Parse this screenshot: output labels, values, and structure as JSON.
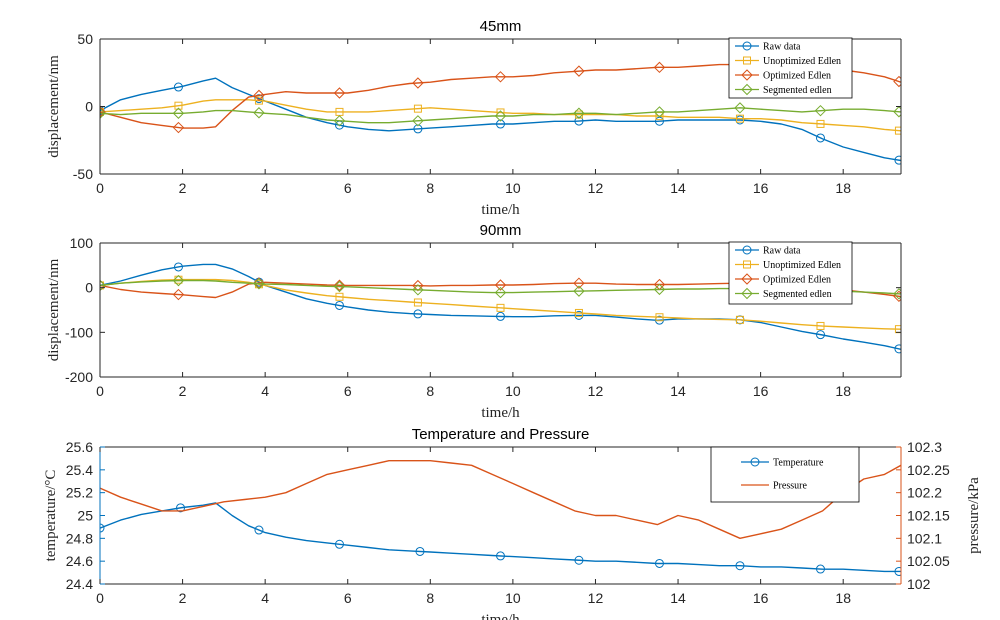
{
  "colors": {
    "blue": "#0072BD",
    "yellow": "#EDB120",
    "orange": "#D95319",
    "green": "#77AC30",
    "axis": "#262626"
  },
  "chart_data": [
    {
      "type": "line",
      "title": "45mm",
      "xlabel": "time/h",
      "ylabel": "displacement/nm",
      "xlim": [
        0,
        19.4
      ],
      "ylim": [
        -50,
        50
      ],
      "xticks": [
        0,
        2,
        4,
        6,
        8,
        10,
        12,
        14,
        16,
        18
      ],
      "yticks": [
        -50,
        0,
        50
      ],
      "legend_position": "top-right",
      "series": [
        {
          "name": "Raw data",
          "marker": "circle",
          "color": "#0072BD",
          "x": [
            0,
            0.5,
            1,
            1.5,
            2,
            2.5,
            2.8,
            3.2,
            3.6,
            4,
            4.5,
            5,
            5.5,
            6,
            6.5,
            7,
            7.5,
            8,
            8.5,
            9,
            9.5,
            10,
            10.5,
            11,
            11.5,
            12,
            12.5,
            13,
            13.5,
            14,
            14.5,
            15,
            15.5,
            16,
            16.5,
            17,
            17.5,
            18,
            18.5,
            19,
            19.4
          ],
          "y": [
            -3,
            5,
            9,
            12,
            15,
            19,
            21,
            14,
            9,
            4,
            -2,
            -8,
            -12,
            -15,
            -17,
            -18,
            -17,
            -16,
            -15,
            -14,
            -13,
            -13,
            -12,
            -11,
            -11,
            -10,
            -11,
            -11,
            -11,
            -10,
            -10,
            -10,
            -10,
            -11,
            -13,
            -17,
            -24,
            -30,
            -34,
            -38,
            -40
          ]
        },
        {
          "name": "Unoptimized Edlen",
          "marker": "square",
          "color": "#EDB120",
          "x": [
            0,
            0.5,
            1,
            1.5,
            2,
            2.5,
            2.8,
            3.2,
            3.6,
            4,
            4.5,
            5,
            5.5,
            6,
            6.5,
            7,
            7.5,
            8,
            8.5,
            9,
            9.5,
            10,
            10.5,
            11,
            11.5,
            12,
            12.5,
            13,
            13.5,
            14,
            14.5,
            15,
            15.5,
            16,
            16.5,
            17,
            17.5,
            18,
            18.5,
            19,
            19.4
          ],
          "y": [
            -4,
            -3,
            -2,
            -1,
            1,
            4,
            5,
            5,
            5,
            4,
            1,
            -2,
            -4,
            -4,
            -4,
            -3,
            -2,
            -1,
            -2,
            -3,
            -4,
            -5,
            -5,
            -6,
            -6,
            -6,
            -6,
            -7,
            -7,
            -8,
            -8,
            -8,
            -9,
            -9,
            -10,
            -12,
            -13,
            -14,
            -15,
            -17,
            -18
          ]
        },
        {
          "name": "Optimized Edlen",
          "marker": "diamond",
          "color": "#D95319",
          "x": [
            0,
            0.5,
            1,
            1.5,
            2,
            2.5,
            2.8,
            3.2,
            3.6,
            4,
            4.5,
            5,
            5.5,
            6,
            6.5,
            7,
            7.5,
            8,
            8.5,
            9,
            9.5,
            10,
            10.5,
            11,
            11.5,
            12,
            12.5,
            13,
            13.5,
            14,
            14.5,
            15,
            15.5,
            16,
            16.5,
            17,
            17.5,
            18,
            18.5,
            19,
            19.4
          ],
          "y": [
            -4,
            -8,
            -12,
            -14,
            -16,
            -16,
            -15,
            -3,
            7,
            9,
            11,
            10,
            10,
            10,
            12,
            15,
            17,
            18,
            20,
            21,
            22,
            22,
            23,
            25,
            26,
            27,
            27,
            28,
            29,
            29,
            30,
            31,
            31,
            31,
            30,
            29,
            28,
            27,
            25,
            22,
            18
          ]
        },
        {
          "name": "Segmented edlen",
          "marker": "diamond",
          "color": "#77AC30",
          "x": [
            0,
            0.5,
            1,
            1.5,
            2,
            2.5,
            2.8,
            3.2,
            3.6,
            4,
            4.5,
            5,
            5.5,
            6,
            6.5,
            7,
            7.5,
            8,
            8.5,
            9,
            9.5,
            10,
            10.5,
            11,
            11.5,
            12,
            12.5,
            13,
            13.5,
            14,
            14.5,
            15,
            15.5,
            16,
            16.5,
            17,
            17.5,
            18,
            18.5,
            19,
            19.4
          ],
          "y": [
            -5,
            -6,
            -5,
            -5,
            -5,
            -4,
            -3,
            -3,
            -4,
            -5,
            -6,
            -8,
            -10,
            -11,
            -12,
            -12,
            -11,
            -10,
            -9,
            -8,
            -7,
            -7,
            -6,
            -6,
            -5,
            -5,
            -6,
            -5,
            -4,
            -4,
            -3,
            -2,
            -1,
            -2,
            -3,
            -4,
            -3,
            -2,
            -2,
            -3,
            -4
          ]
        }
      ]
    },
    {
      "type": "line",
      "title": "90mm",
      "xlabel": "time/h",
      "ylabel": "displacement/nm",
      "xlim": [
        0,
        19.4
      ],
      "ylim": [
        -200,
        100
      ],
      "xticks": [
        0,
        2,
        4,
        6,
        8,
        10,
        12,
        14,
        16,
        18
      ],
      "yticks": [
        -200,
        -100,
        0,
        100
      ],
      "legend_position": "top-right",
      "series": [
        {
          "name": "Raw data",
          "marker": "circle",
          "color": "#0072BD",
          "x": [
            0,
            0.5,
            1,
            1.5,
            2,
            2.5,
            2.8,
            3.2,
            3.6,
            4,
            4.5,
            5,
            5.5,
            6,
            6.5,
            7,
            7.5,
            8,
            8.5,
            9,
            9.5,
            10,
            10.5,
            11,
            11.5,
            12,
            12.5,
            13,
            13.5,
            14,
            14.5,
            15,
            15.5,
            16,
            16.5,
            17,
            17.5,
            18,
            18.5,
            19,
            19.4
          ],
          "y": [
            5,
            15,
            28,
            40,
            48,
            52,
            52,
            42,
            25,
            5,
            -10,
            -25,
            -35,
            -43,
            -50,
            -55,
            -58,
            -60,
            -62,
            -63,
            -64,
            -65,
            -65,
            -63,
            -62,
            -62,
            -66,
            -70,
            -73,
            -70,
            -70,
            -70,
            -72,
            -78,
            -88,
            -98,
            -106,
            -115,
            -122,
            -130,
            -138
          ]
        },
        {
          "name": "Unoptimized Edlen",
          "marker": "square",
          "color": "#EDB120",
          "x": [
            0,
            0.5,
            1,
            1.5,
            2,
            2.5,
            2.8,
            3.2,
            3.6,
            4,
            4.5,
            5,
            5.5,
            6,
            6.5,
            7,
            7.5,
            8,
            8.5,
            9,
            9.5,
            10,
            10.5,
            11,
            11.5,
            12,
            12.5,
            13,
            13.5,
            14,
            14.5,
            15,
            15.5,
            16,
            16.5,
            17,
            17.5,
            18,
            18.5,
            19,
            19.4
          ],
          "y": [
            5,
            10,
            14,
            17,
            18,
            18,
            18,
            16,
            12,
            5,
            -5,
            -12,
            -18,
            -22,
            -26,
            -29,
            -32,
            -35,
            -38,
            -41,
            -44,
            -47,
            -50,
            -53,
            -56,
            -59,
            -62,
            -64,
            -66,
            -68,
            -70,
            -71,
            -72,
            -75,
            -79,
            -83,
            -86,
            -88,
            -90,
            -92,
            -93
          ]
        },
        {
          "name": "Optimized Edlen",
          "marker": "diamond",
          "color": "#D95319",
          "x": [
            0,
            0.5,
            1,
            1.5,
            2,
            2.5,
            2.8,
            3.2,
            3.6,
            4,
            4.5,
            5,
            5.5,
            6,
            6.5,
            7,
            7.5,
            8,
            8.5,
            9,
            9.5,
            10,
            10.5,
            11,
            11.5,
            12,
            12.5,
            13,
            13.5,
            14,
            14.5,
            15,
            15.5,
            16,
            16.5,
            17,
            17.5,
            18,
            18.5,
            19,
            19.4
          ],
          "y": [
            5,
            -4,
            -10,
            -13,
            -16,
            -20,
            -22,
            -10,
            8,
            12,
            10,
            8,
            6,
            5,
            5,
            5,
            5,
            4,
            5,
            5,
            6,
            6,
            7,
            9,
            10,
            10,
            8,
            7,
            7,
            7,
            8,
            9,
            10,
            9,
            8,
            5,
            0,
            -5,
            -10,
            -15,
            -20
          ]
        },
        {
          "name": "Segmented edlen",
          "marker": "diamond",
          "color": "#77AC30",
          "x": [
            0,
            0.5,
            1,
            1.5,
            2,
            2.5,
            2.8,
            3.2,
            3.6,
            4,
            4.5,
            5,
            5.5,
            6,
            6.5,
            7,
            7.5,
            8,
            8.5,
            9,
            9.5,
            10,
            10.5,
            11,
            11.5,
            12,
            12.5,
            13,
            13.5,
            14,
            14.5,
            15,
            15.5,
            16,
            16.5,
            17,
            17.5,
            18,
            18.5,
            19,
            19.4
          ],
          "y": [
            5,
            10,
            13,
            15,
            16,
            16,
            15,
            12,
            10,
            8,
            7,
            5,
            3,
            2,
            0,
            -2,
            -4,
            -6,
            -8,
            -10,
            -11,
            -11,
            -10,
            -9,
            -8,
            -7,
            -6,
            -5,
            -4,
            -3,
            -3,
            -2,
            -2,
            -3,
            -4,
            -5,
            -6,
            -8,
            -10,
            -12,
            -14
          ]
        }
      ]
    },
    {
      "type": "line",
      "title": "Temperature and Pressure",
      "xlabel": "time/h",
      "ylabel_left": "temperature/°C",
      "ylabel_right": "pressure/kPa",
      "xlim": [
        0,
        19.4
      ],
      "ylim_left": [
        24.4,
        25.6
      ],
      "ylim_right": [
        102,
        102.3
      ],
      "xticks": [
        0,
        2,
        4,
        6,
        8,
        10,
        12,
        14,
        16,
        18
      ],
      "yticks_left": [
        24.4,
        24.6,
        24.8,
        25,
        25.2,
        25.4,
        25.6
      ],
      "ytick_labels_left": [
        "24.4",
        "24.6",
        "24.8",
        "25",
        "25.2",
        "25.4",
        "25.6"
      ],
      "yticks_right": [
        102,
        102.05,
        102.1,
        102.15,
        102.2,
        102.25,
        102.3
      ],
      "ytick_labels_right": [
        "102",
        "102.05",
        "102.1",
        "102.15",
        "102.2",
        "102.25",
        "102.3"
      ],
      "legend_position": "top-right",
      "series": [
        {
          "name": "Temperature",
          "axis": "left",
          "marker": "circle",
          "color": "#0072BD",
          "x": [
            0,
            0.5,
            1,
            1.5,
            2,
            2.5,
            2.8,
            3.2,
            3.6,
            4,
            4.5,
            5,
            5.5,
            6,
            6.5,
            7,
            7.5,
            8,
            8.5,
            9,
            9.5,
            10,
            10.5,
            11,
            11.5,
            12,
            12.5,
            13,
            13.5,
            14,
            14.5,
            15,
            15.5,
            16,
            16.5,
            17,
            17.5,
            18,
            18.5,
            19,
            19.4
          ],
          "y": [
            24.89,
            24.96,
            25.01,
            25.04,
            25.07,
            25.09,
            25.11,
            25.0,
            24.91,
            24.85,
            24.81,
            24.78,
            24.76,
            24.74,
            24.72,
            24.7,
            24.69,
            24.68,
            24.67,
            24.66,
            24.65,
            24.64,
            24.63,
            24.62,
            24.61,
            24.6,
            24.6,
            24.59,
            24.58,
            24.58,
            24.57,
            24.56,
            24.56,
            24.55,
            24.55,
            24.54,
            24.53,
            24.53,
            24.52,
            24.51,
            24.51
          ]
        },
        {
          "name": "Pressure",
          "axis": "right",
          "marker": "none",
          "color": "#D95319",
          "x": [
            0,
            0.5,
            1,
            1.5,
            2,
            2.5,
            3,
            3.5,
            4,
            4.5,
            5,
            5.5,
            6,
            6.5,
            7,
            7.5,
            8,
            8.5,
            9,
            9.5,
            10,
            10.5,
            11,
            11.5,
            12,
            12.5,
            13,
            13.5,
            14,
            14.5,
            15,
            15.5,
            16,
            16.5,
            17,
            17.5,
            18,
            18.5,
            19,
            19.4
          ],
          "y": [
            102.21,
            102.19,
            102.175,
            102.16,
            102.16,
            102.17,
            102.18,
            102.185,
            102.19,
            102.2,
            102.22,
            102.24,
            102.25,
            102.26,
            102.27,
            102.27,
            102.27,
            102.265,
            102.26,
            102.24,
            102.22,
            102.2,
            102.18,
            102.16,
            102.15,
            102.15,
            102.14,
            102.13,
            102.15,
            102.14,
            102.12,
            102.1,
            102.11,
            102.12,
            102.14,
            102.16,
            102.2,
            102.23,
            102.24,
            102.26
          ]
        }
      ]
    }
  ]
}
